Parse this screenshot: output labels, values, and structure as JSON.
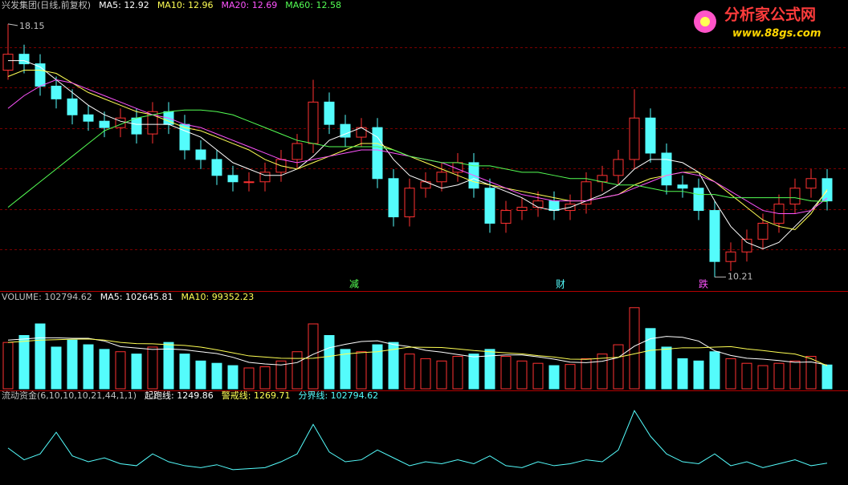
{
  "watermark": {
    "name": "分析家公式网",
    "url": "www.88gs.com"
  },
  "chart_data": [
    {
      "type": "candlestick",
      "title": "兴发集团(日线,前复权)",
      "grid": true,
      "up_color": "#ff3232",
      "down_color": "#54fcfc",
      "ylim": [
        9.8,
        18.7
      ],
      "open": [
        16.7,
        17.2,
        16.9,
        16.2,
        15.8,
        15.3,
        15.1,
        14.9,
        15.2,
        14.7,
        15.4,
        15.0,
        14.2,
        13.9,
        13.4,
        13.2,
        13.2,
        13.5,
        13.9,
        14.4,
        15.7,
        15.0,
        14.6,
        14.9,
        13.3,
        12.1,
        13.0,
        13.2,
        13.5,
        13.8,
        13.0,
        11.9,
        12.3,
        12.4,
        12.6,
        12.3,
        12.5,
        13.2,
        13.4,
        13.9,
        15.2,
        14.1,
        13.1,
        13.0,
        12.3,
        10.7,
        11.0,
        11.4,
        11.9,
        12.5,
        13.0,
        13.3
      ],
      "high": [
        18.15,
        17.5,
        17.2,
        16.5,
        16.1,
        15.6,
        15.4,
        15.5,
        15.5,
        15.7,
        15.7,
        15.3,
        14.5,
        14.2,
        13.7,
        13.5,
        13.8,
        14.2,
        14.7,
        16.4,
        16.0,
        15.3,
        15.2,
        15.2,
        13.6,
        13.3,
        13.5,
        13.8,
        14.1,
        14.1,
        13.3,
        12.6,
        12.7,
        12.9,
        12.9,
        12.8,
        13.5,
        13.7,
        14.2,
        16.1,
        15.5,
        14.4,
        13.4,
        13.3,
        12.6,
        11.3,
        11.7,
        12.2,
        12.8,
        13.3,
        13.6,
        13.6
      ],
      "low": [
        16.4,
        16.6,
        15.9,
        15.5,
        15.0,
        14.8,
        14.6,
        14.6,
        14.4,
        14.4,
        14.7,
        13.9,
        13.6,
        13.1,
        12.9,
        12.9,
        12.9,
        13.2,
        13.6,
        14.1,
        14.7,
        14.3,
        14.3,
        13.0,
        11.8,
        11.8,
        12.7,
        12.9,
        13.2,
        12.7,
        11.6,
        11.6,
        12.0,
        12.1,
        12.0,
        12.0,
        12.2,
        12.9,
        13.1,
        13.6,
        13.8,
        12.8,
        12.7,
        12.0,
        10.21,
        10.4,
        10.7,
        11.1,
        11.6,
        12.2,
        12.7,
        12.3
      ],
      "close": [
        17.2,
        16.9,
        16.2,
        15.8,
        15.3,
        15.1,
        14.9,
        15.2,
        14.7,
        15.4,
        15.0,
        14.2,
        13.9,
        13.4,
        13.2,
        13.2,
        13.5,
        13.9,
        14.4,
        15.7,
        15.0,
        14.6,
        14.9,
        13.3,
        12.1,
        13.0,
        13.2,
        13.5,
        13.8,
        13.0,
        11.9,
        12.3,
        12.4,
        12.6,
        12.3,
        12.5,
        13.2,
        13.4,
        13.9,
        15.2,
        14.1,
        13.1,
        13.0,
        12.3,
        10.7,
        11.0,
        11.4,
        11.9,
        12.5,
        13.0,
        13.3,
        12.6
      ],
      "series": [
        {
          "name": "MA5",
          "color": "#ffffff",
          "values": [
            17.0,
            17.0,
            16.8,
            16.4,
            16.0,
            15.6,
            15.3,
            15.1,
            15.0,
            15.0,
            15.0,
            14.8,
            14.6,
            14.2,
            13.8,
            13.6,
            13.4,
            13.4,
            13.6,
            14.0,
            14.5,
            14.7,
            14.9,
            14.6,
            13.9,
            13.4,
            13.2,
            13.0,
            13.1,
            13.3,
            13.1,
            12.9,
            12.7,
            12.4,
            12.3,
            12.4,
            12.6,
            12.8,
            13.1,
            13.6,
            13.9,
            13.9,
            13.8,
            13.5,
            12.6,
            11.8,
            11.3,
            11.1,
            11.3,
            11.8,
            12.3,
            12.92
          ]
        },
        {
          "name": "MA10",
          "color": "#ffff54",
          "values": [
            16.5,
            16.7,
            16.7,
            16.6,
            16.3,
            16.0,
            15.8,
            15.6,
            15.4,
            15.3,
            15.1,
            14.9,
            14.8,
            14.6,
            14.4,
            14.2,
            13.9,
            13.7,
            13.6,
            13.8,
            14.0,
            14.2,
            14.4,
            14.4,
            14.2,
            14.0,
            13.8,
            13.6,
            13.4,
            13.2,
            13.1,
            13.0,
            12.9,
            12.8,
            12.7,
            12.6,
            12.6,
            12.7,
            12.8,
            13.1,
            13.3,
            13.4,
            13.5,
            13.5,
            13.2,
            12.8,
            12.4,
            12.0,
            11.8,
            11.7,
            12.2,
            12.96
          ]
        },
        {
          "name": "MA20",
          "color": "#ff54ff",
          "values": [
            15.5,
            15.9,
            16.2,
            16.4,
            16.3,
            16.1,
            15.9,
            15.7,
            15.5,
            15.3,
            15.2,
            15.0,
            14.9,
            14.7,
            14.5,
            14.3,
            14.1,
            13.9,
            13.8,
            13.9,
            14.0,
            14.1,
            14.2,
            14.2,
            14.1,
            14.0,
            13.9,
            13.8,
            13.6,
            13.4,
            13.2,
            13.0,
            12.8,
            12.7,
            12.6,
            12.6,
            12.6,
            12.7,
            12.8,
            13.0,
            13.2,
            13.4,
            13.5,
            13.4,
            13.2,
            12.9,
            12.6,
            12.3,
            12.2,
            12.2,
            12.3,
            12.69
          ]
        },
        {
          "name": "MA60",
          "color": "#54ff54",
          "values": [
            12.4,
            12.8,
            13.2,
            13.6,
            14.0,
            14.4,
            14.8,
            15.0,
            15.2,
            15.3,
            15.4,
            15.45,
            15.45,
            15.4,
            15.3,
            15.1,
            14.9,
            14.7,
            14.5,
            14.4,
            14.3,
            14.3,
            14.3,
            14.3,
            14.2,
            14.0,
            13.9,
            13.8,
            13.8,
            13.7,
            13.7,
            13.6,
            13.5,
            13.5,
            13.4,
            13.3,
            13.3,
            13.2,
            13.1,
            13.1,
            13.0,
            12.9,
            12.9,
            12.8,
            12.8,
            12.7,
            12.7,
            12.7,
            12.7,
            12.7,
            12.6,
            12.58
          ]
        }
      ],
      "markers": [
        "减",
        "财",
        "跌"
      ]
    },
    {
      "type": "bar",
      "title": "VOLUME",
      "ylim": [
        0,
        370000
      ],
      "values": [
        200000,
        230000,
        280000,
        180000,
        210000,
        190000,
        170000,
        160000,
        150000,
        180000,
        200000,
        150000,
        120000,
        110000,
        100000,
        90000,
        95000,
        120000,
        160000,
        280000,
        230000,
        170000,
        160000,
        190000,
        200000,
        150000,
        130000,
        120000,
        140000,
        150000,
        170000,
        140000,
        120000,
        110000,
        100000,
        105000,
        130000,
        150000,
        190000,
        350000,
        260000,
        180000,
        130000,
        120000,
        160000,
        130000,
        110000,
        100000,
        110000,
        120000,
        140000,
        102794.62
      ],
      "series": [
        {
          "name": "MA5",
          "color": "#ffffff",
          "values": [
            210000,
            215000,
            220000,
            220000,
            218000,
            218000,
            206000,
            182000,
            176000,
            170000,
            172000,
            168000,
            160000,
            152000,
            136000,
            114000,
            107000,
            103000,
            113000,
            149000,
            177000,
            192000,
            204000,
            207000,
            191000,
            182000,
            166000,
            158000,
            148000,
            138000,
            142000,
            146000,
            146000,
            138000,
            128000,
            115000,
            113000,
            119000,
            135000,
            184000,
            216000,
            226000,
            222000,
            206000,
            164000,
            144000,
            132000,
            128000,
            122000,
            114000,
            116000,
            102645.81
          ]
        },
        {
          "name": "MA10",
          "color": "#ffff54",
          "values": [
            200000,
            205000,
            210000,
            212000,
            214000,
            215000,
            210000,
            200000,
            195000,
            194000,
            190000,
            187000,
            180000,
            168000,
            155000,
            142000,
            137000,
            132000,
            131000,
            132000,
            140000,
            150000,
            156000,
            160000,
            170000,
            180000,
            179000,
            178000,
            172000,
            165000,
            160000,
            155000,
            151000,
            143000,
            137000,
            128000,
            127000,
            132000,
            136000,
            151000,
            166000,
            171000,
            177000,
            177000,
            180000,
            182000,
            172000,
            165000,
            157000,
            150000,
            130000,
            99352.23
          ]
        }
      ]
    },
    {
      "type": "line",
      "title": "流动资金(6,10,10,10,21,44,1,1)",
      "ylim": [
        0,
        420000
      ],
      "levels": [
        {
          "name": "起跑线",
          "color": "#ffffff",
          "value": 1249.86
        },
        {
          "name": "警戒线",
          "color": "#ffff54",
          "value": 1269.71
        }
      ],
      "series": [
        {
          "name": "分界线",
          "color": "#54fcfc",
          "values": [
            180000,
            120000,
            150000,
            260000,
            140000,
            110000,
            130000,
            100000,
            90000,
            150000,
            110000,
            90000,
            80000,
            95000,
            70000,
            75000,
            80000,
            110000,
            150000,
            300000,
            160000,
            110000,
            120000,
            170000,
            130000,
            90000,
            110000,
            100000,
            120000,
            100000,
            140000,
            90000,
            80000,
            110000,
            90000,
            100000,
            120000,
            110000,
            170000,
            370000,
            240000,
            150000,
            110000,
            100000,
            150000,
            90000,
            110000,
            80000,
            100000,
            120000,
            90000,
            102794.62
          ]
        }
      ]
    }
  ]
}
